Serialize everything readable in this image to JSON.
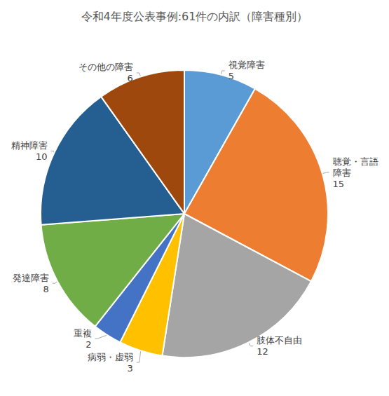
{
  "chart_data": {
    "type": "pie",
    "title": "令和4年度公表事例:61件の内訳（障害種別）",
    "categories": [
      "視覚障害",
      "聴覚・言語\n障害",
      "肢体不自由",
      "病弱・虚弱",
      "重複",
      "発達障害",
      "精神障害",
      "その他の障害"
    ],
    "values": [
      5,
      15,
      12,
      3,
      2,
      8,
      10,
      6
    ],
    "colors": [
      "#5b9bd5",
      "#ed7d31",
      "#a5a5a5",
      "#ffc000",
      "#4472c4",
      "#70ad47",
      "#255e91",
      "#9e480e"
    ],
    "data_labels": true
  }
}
